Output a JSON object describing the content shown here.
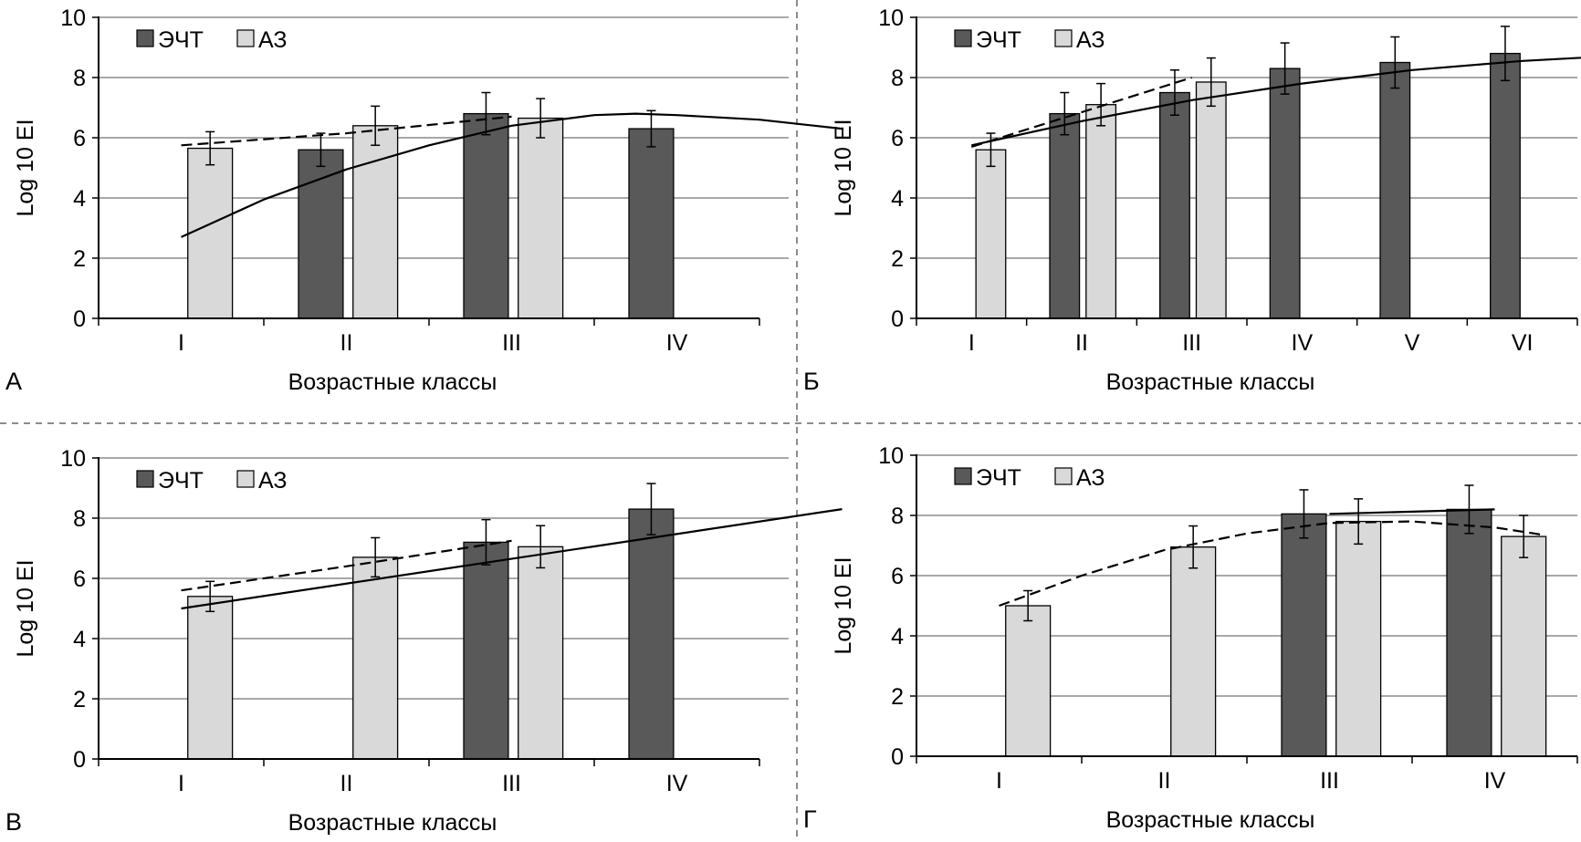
{
  "colors": {
    "ЭЧТ": "#595959",
    "АЗ": "#d9d9d9",
    "grid": "#8c8c8c",
    "separator": "#8c8c8c"
  },
  "chart_data": [
    {
      "type": "bar",
      "panel_letter": "А",
      "ylabel": "Log 10 EI",
      "xlabel": "Возрастные классы",
      "ylim": [
        0,
        10
      ],
      "yticks": [
        "0",
        "2",
        "4",
        "6",
        "8",
        "10"
      ],
      "grid": true,
      "legend": {
        "placement": "top-left",
        "entries": [
          "ЭЧТ",
          "АЗ"
        ]
      },
      "categories": [
        "I",
        "II",
        "III",
        "IV"
      ],
      "series": [
        {
          "name": "ЭЧТ",
          "values": [
            null,
            5.6,
            6.8,
            6.3
          ],
          "errors": [
            null,
            0.55,
            0.7,
            0.6
          ]
        },
        {
          "name": "АЗ",
          "values": [
            5.65,
            6.4,
            6.65,
            null
          ],
          "errors": [
            0.55,
            0.65,
            0.65,
            null
          ]
        }
      ],
      "trendlines": [
        {
          "series": "ЭЧТ",
          "style": "solid",
          "points": [
            [
              1,
              2.7
            ],
            [
              1.5,
              3.95
            ],
            [
              2,
              4.95
            ],
            [
              2.5,
              5.75
            ],
            [
              3,
              6.4
            ],
            [
              3.5,
              6.75
            ],
            [
              3.75,
              6.8
            ],
            [
              4,
              6.75
            ],
            [
              4.5,
              6.6
            ],
            [
              5,
              6.3
            ]
          ]
        },
        {
          "series": "АЗ",
          "style": "dashed",
          "points": [
            [
              1,
              5.75
            ],
            [
              2,
              6.15
            ],
            [
              3,
              6.7
            ]
          ]
        }
      ]
    },
    {
      "type": "bar",
      "panel_letter": "Б",
      "ylabel": "Log 10 EI",
      "xlabel": "Возрастные классы",
      "ylim": [
        0,
        10
      ],
      "yticks": [
        "0",
        "2",
        "4",
        "6",
        "8",
        "10"
      ],
      "grid": true,
      "legend": {
        "placement": "top-left",
        "entries": [
          "ЭЧТ",
          "АЗ"
        ]
      },
      "categories": [
        "I",
        "II",
        "III",
        "IV",
        "V",
        "VI"
      ],
      "series": [
        {
          "name": "ЭЧТ",
          "values": [
            null,
            6.8,
            7.5,
            8.3,
            8.5,
            8.8
          ],
          "errors": [
            null,
            0.7,
            0.75,
            0.85,
            0.85,
            0.9
          ]
        },
        {
          "name": "АЗ",
          "values": [
            5.6,
            7.1,
            7.85,
            null,
            null,
            null
          ],
          "errors": [
            0.55,
            0.7,
            0.8,
            null,
            null,
            null
          ]
        }
      ],
      "trendlines": [
        {
          "series": "ЭЧТ",
          "style": "solid",
          "points": [
            [
              1,
              5.75
            ],
            [
              2,
              6.55
            ],
            [
              3,
              7.25
            ],
            [
              4,
              7.8
            ],
            [
              5,
              8.25
            ],
            [
              6,
              8.55
            ],
            [
              7,
              8.75
            ],
            [
              7.5,
              8.8
            ]
          ]
        },
        {
          "series": "АЗ",
          "style": "dashed",
          "points": [
            [
              1,
              5.7
            ],
            [
              2,
              6.85
            ],
            [
              3,
              8.0
            ]
          ]
        }
      ]
    },
    {
      "type": "bar",
      "panel_letter": "В",
      "ylabel": "Log 10 EI",
      "xlabel": "Возрастные классы",
      "ylim": [
        0,
        10
      ],
      "yticks": [
        "0",
        "2",
        "4",
        "6",
        "8",
        "10"
      ],
      "grid": true,
      "legend": {
        "placement": "top-left",
        "entries": [
          "ЭЧТ",
          "АЗ"
        ]
      },
      "categories": [
        "I",
        "II",
        "III",
        "IV"
      ],
      "series": [
        {
          "name": "ЭЧТ",
          "values": [
            null,
            null,
            7.2,
            8.3
          ],
          "errors": [
            null,
            null,
            0.75,
            0.85
          ]
        },
        {
          "name": "АЗ",
          "values": [
            5.4,
            6.7,
            7.05,
            null
          ],
          "errors": [
            0.5,
            0.65,
            0.7,
            null
          ]
        }
      ],
      "trendlines": [
        {
          "series": "ЭЧТ",
          "style": "solid",
          "points": [
            [
              1,
              5.0
            ],
            [
              5,
              8.3
            ]
          ]
        },
        {
          "series": "АЗ",
          "style": "dashed",
          "points": [
            [
              1,
              5.6
            ],
            [
              2,
              6.4
            ],
            [
              3,
              7.25
            ]
          ]
        }
      ]
    },
    {
      "type": "bar",
      "panel_letter": "Г",
      "ylabel": "Log 10 EI",
      "xlabel": "Возрастные классы",
      "ylim": [
        0,
        10
      ],
      "yticks": [
        "0",
        "2",
        "4",
        "6",
        "8",
        "10"
      ],
      "grid": true,
      "legend": {
        "placement": "top-left",
        "entries": [
          "ЭЧТ",
          "АЗ"
        ]
      },
      "categories": [
        "I",
        "II",
        "III",
        "IV"
      ],
      "series": [
        {
          "name": "ЭЧТ",
          "values": [
            null,
            null,
            8.05,
            8.2
          ],
          "errors": [
            null,
            null,
            0.8,
            0.8
          ]
        },
        {
          "name": "АЗ",
          "values": [
            5.0,
            6.95,
            7.8,
            7.3
          ],
          "errors": [
            0.5,
            0.7,
            0.75,
            0.7
          ]
        }
      ],
      "trendlines": [
        {
          "series": "ЭЧТ",
          "style": "solid",
          "points": [
            [
              3,
              8.05
            ],
            [
              4,
              8.2
            ]
          ]
        },
        {
          "series": "АЗ",
          "style": "dashed",
          "points": [
            [
              1,
              5.0
            ],
            [
              1.5,
              6.0
            ],
            [
              2,
              6.85
            ],
            [
              2.5,
              7.4
            ],
            [
              3,
              7.75
            ],
            [
              3.5,
              7.8
            ],
            [
              4,
              7.6
            ],
            [
              4.3,
              7.35
            ]
          ]
        }
      ]
    }
  ]
}
